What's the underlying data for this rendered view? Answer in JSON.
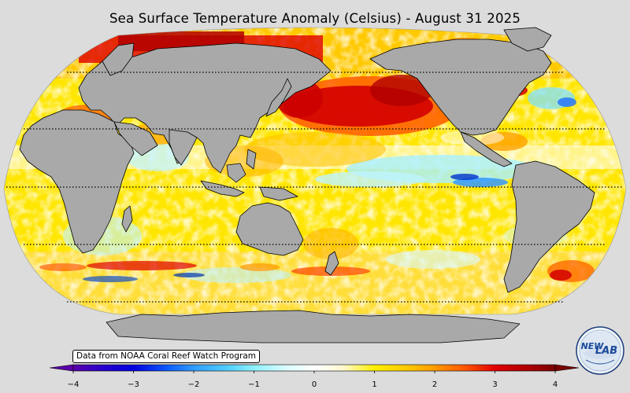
{
  "title": "Sea Surface Temperature Anomaly (Celsius) - August 31 2025",
  "credit": "Data from NOAA Coral Reef Watch Program",
  "logo": {
    "text_top": "NEW",
    "text_bottom": "LAB"
  },
  "colorbar": {
    "min": -4,
    "max": 4,
    "ticks": [
      {
        "value": -4,
        "label": "−4"
      },
      {
        "value": -3,
        "label": "−3"
      },
      {
        "value": -2,
        "label": "−2"
      },
      {
        "value": -1,
        "label": "−1"
      },
      {
        "value": 0,
        "label": "0"
      },
      {
        "value": 1,
        "label": "1"
      },
      {
        "value": 2,
        "label": "2"
      },
      {
        "value": 3,
        "label": "3"
      },
      {
        "value": 4,
        "label": "4"
      }
    ],
    "extend": "both"
  },
  "colors": {
    "background": "#dcdcdc",
    "land": "#a9a9a9",
    "warm": "#ffe000",
    "hot": "#cc0000",
    "cool": "#7fe8ff",
    "cold": "#0000cc"
  }
}
